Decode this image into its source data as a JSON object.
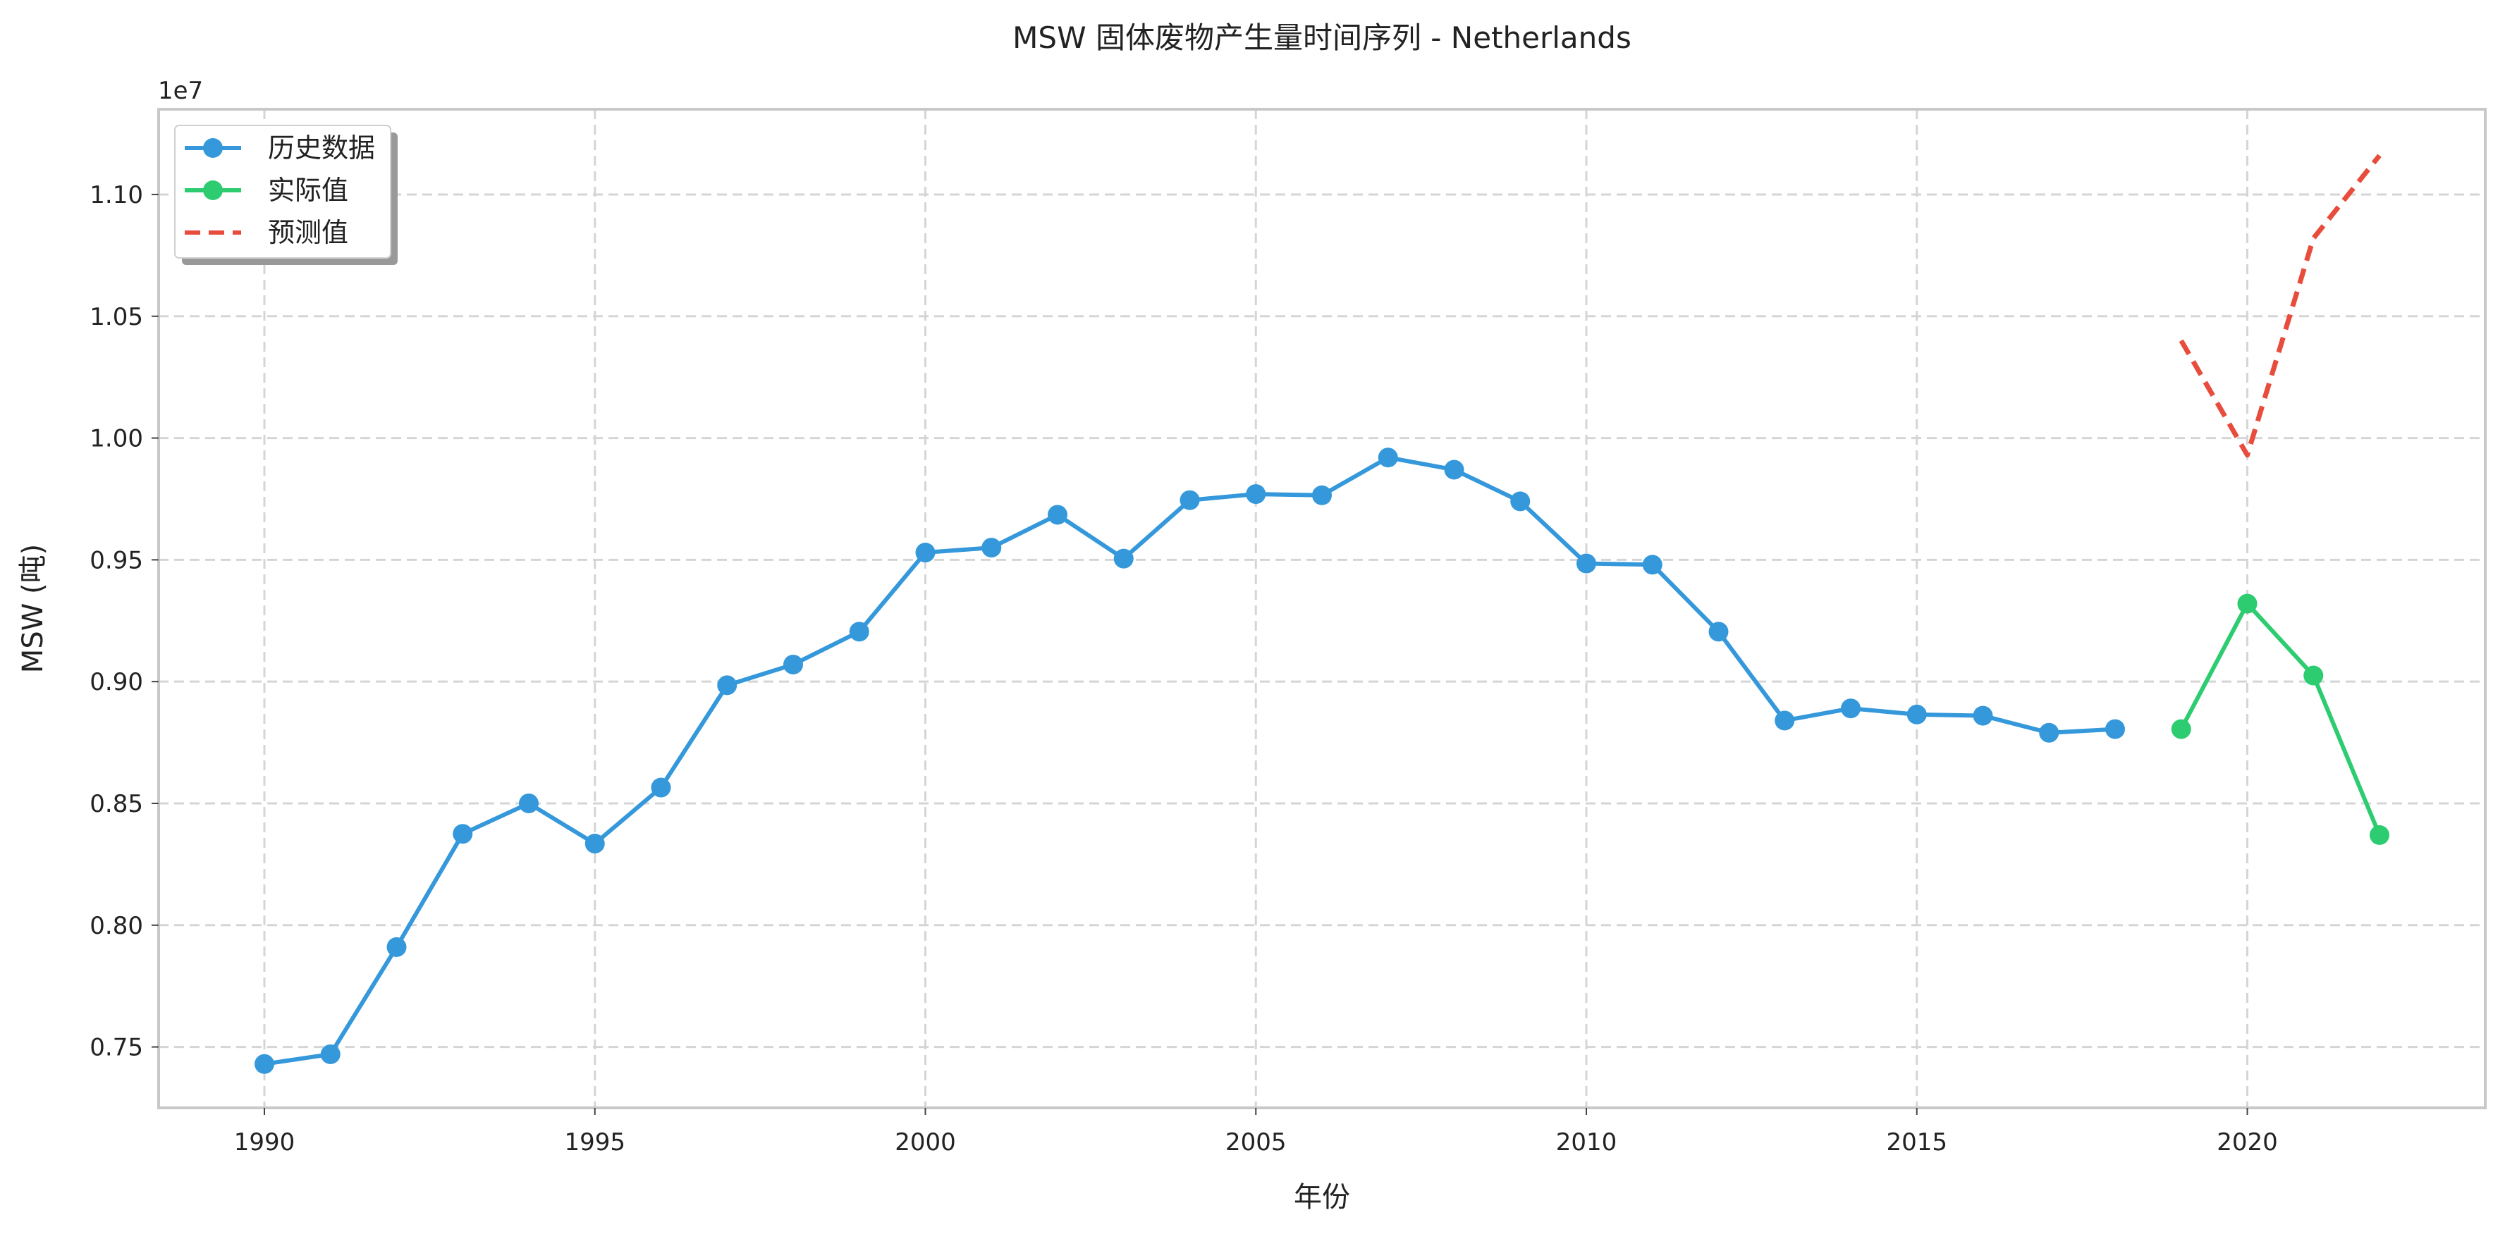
{
  "chart_data": {
    "type": "line",
    "title": "MSW 固体废物产生量时间序列 - Netherlands",
    "xlabel": "年份",
    "ylabel": "MSW (吨)",
    "y_offset_text": "1e7",
    "xlim": [
      1988.4,
      2023.6
    ],
    "ylim": [
      7250000,
      11350000
    ],
    "x_ticks": [
      1990,
      1995,
      2000,
      2005,
      2010,
      2015,
      2020
    ],
    "y_ticks": [
      7500000,
      8000000,
      8500000,
      9000000,
      9500000,
      10000000,
      10500000,
      11000000
    ],
    "y_tick_labels": [
      "0.75",
      "0.80",
      "0.85",
      "0.90",
      "0.95",
      "1.00",
      "1.05",
      "1.10"
    ],
    "grid": true,
    "legend_position": "upper-left",
    "series": [
      {
        "name": "历史数据",
        "color": "#3498db",
        "style": "solid",
        "marker": true,
        "x": [
          1990,
          1991,
          1992,
          1993,
          1994,
          1995,
          1996,
          1997,
          1998,
          1999,
          2000,
          2001,
          2002,
          2003,
          2004,
          2005,
          2006,
          2007,
          2008,
          2009,
          2010,
          2011,
          2012,
          2013,
          2014,
          2015,
          2016,
          2017,
          2018
        ],
        "y": [
          7430000,
          7470000,
          7910000,
          8375000,
          8500000,
          8335000,
          8565000,
          8985000,
          9070000,
          9205000,
          9530000,
          9550000,
          9685000,
          9505000,
          9745000,
          9770000,
          9765000,
          9920000,
          9870000,
          9740000,
          9485000,
          9480000,
          9205000,
          8840000,
          8890000,
          8865000,
          8860000,
          8790000,
          8805000
        ]
      },
      {
        "name": "实际值",
        "color": "#2ecc71",
        "style": "solid",
        "marker": true,
        "x": [
          2019,
          2020,
          2021,
          2022
        ],
        "y": [
          8805000,
          9320000,
          9025000,
          8370000
        ]
      },
      {
        "name": "预测值",
        "color": "#e74c3c",
        "style": "dashed",
        "marker": false,
        "x": [
          2019,
          2020,
          2021,
          2022
        ],
        "y": [
          10400000,
          9930000,
          10820000,
          11160000
        ]
      }
    ]
  }
}
